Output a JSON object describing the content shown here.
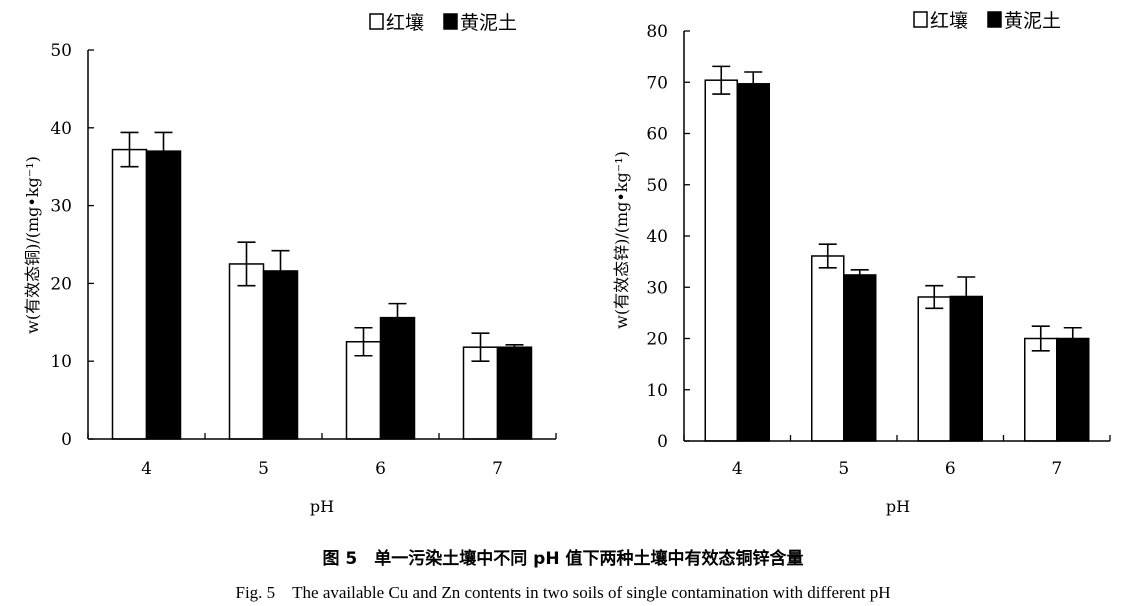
{
  "chart_data": [
    {
      "type": "bar",
      "categories": [
        "4",
        "5",
        "6",
        "7"
      ],
      "series": [
        {
          "name": "红壤",
          "values": [
            37.2,
            22.5,
            12.5,
            11.8
          ],
          "errors": [
            2.2,
            2.8,
            1.8,
            1.8
          ],
          "color": "#ffffff"
        },
        {
          "name": "黄泥土",
          "values": [
            37.0,
            21.6,
            15.6,
            11.8
          ],
          "errors": [
            2.4,
            2.6,
            1.8,
            0.3
          ],
          "color": "#000000"
        }
      ],
      "ylim": [
        0,
        50
      ],
      "yticks": [
        "0",
        "10",
        "20",
        "30",
        "40",
        "50"
      ],
      "ylabel": "w(有效态铜)/(mg•kg⁻¹)",
      "xlabel": "pH",
      "legend": "top-right",
      "grid": false
    },
    {
      "type": "bar",
      "categories": [
        "4",
        "5",
        "6",
        "7"
      ],
      "series": [
        {
          "name": "红壤",
          "values": [
            70.4,
            36.1,
            28.1,
            20.0
          ],
          "errors": [
            2.7,
            2.3,
            2.2,
            2.4
          ],
          "color": "#ffffff"
        },
        {
          "name": "黄泥土",
          "values": [
            69.7,
            32.4,
            28.2,
            20.0
          ],
          "errors": [
            2.3,
            1.0,
            3.8,
            2.1
          ],
          "color": "#000000"
        }
      ],
      "ylim": [
        0,
        80
      ],
      "yticks": [
        "0",
        "10",
        "20",
        "30",
        "40",
        "50",
        "60",
        "70",
        "80"
      ],
      "ylabel": "w(有效态锌)/(mg•kg⁻¹)",
      "xlabel": "pH",
      "legend": "top-right",
      "grid": false
    }
  ],
  "caption": {
    "cn": "图 5　单一污染土壤中不同 pH 值下两种土壤中有效态铜锌含量",
    "en": "Fig. 5　The available Cu and Zn contents in two soils of single contamination with different pH"
  }
}
